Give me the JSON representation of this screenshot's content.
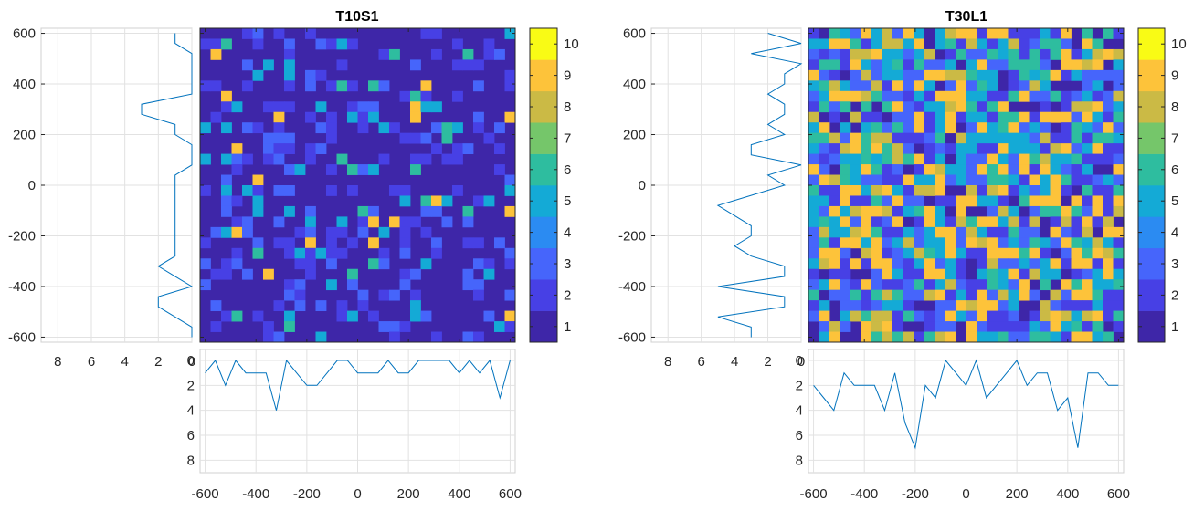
{
  "chart_data": [
    {
      "id": "left",
      "type": "heatmap",
      "title": "T10S1",
      "xlim": [
        -620,
        620
      ],
      "ylim": [
        -620,
        620
      ],
      "xticks": [
        -600,
        -400,
        -200,
        0,
        200,
        400,
        600
      ],
      "yticks": [
        -600,
        -400,
        -200,
        0,
        200,
        400,
        600
      ],
      "grid": "30x30",
      "colorbar": {
        "ticks": [
          1,
          2,
          3,
          4,
          5,
          6,
          7,
          8,
          9,
          10
        ],
        "range": [
          0.5,
          10.5
        ]
      },
      "noise": {
        "seed": 11,
        "p1": 0.68,
        "p2": 0.83,
        "p3": 0.91,
        "p4": 0.96,
        "p5": 0.985
      },
      "row_profile": {
        "xlim": [
          0,
          9
        ],
        "xticks": [
          8,
          6,
          4,
          2,
          0
        ],
        "y": [
          600,
          560,
          520,
          480,
          440,
          400,
          360,
          320,
          280,
          240,
          200,
          160,
          120,
          80,
          40,
          0,
          -40,
          -80,
          -120,
          -160,
          -200,
          -240,
          -280,
          -320,
          -360,
          -400,
          -440,
          -480,
          -520,
          -560,
          -600
        ],
        "x": [
          1,
          1,
          0,
          0,
          0,
          0,
          0,
          3,
          3,
          1,
          1,
          0,
          0,
          0,
          1,
          1,
          1,
          1,
          1,
          1,
          1,
          1,
          1,
          2,
          1,
          0,
          2,
          2,
          1,
          0,
          0
        ]
      },
      "col_profile": {
        "ylim": [
          0,
          9
        ],
        "yticks": [
          0,
          2,
          4,
          6,
          8
        ],
        "x": [
          -600,
          -560,
          -520,
          -480,
          -440,
          -400,
          -360,
          -320,
          -280,
          -240,
          -200,
          -160,
          -120,
          -80,
          -40,
          0,
          40,
          80,
          120,
          160,
          200,
          240,
          280,
          320,
          360,
          400,
          440,
          480,
          520,
          560,
          600
        ],
        "y": [
          1,
          0,
          2,
          0,
          1,
          1,
          1,
          4,
          0,
          1,
          2,
          2,
          1,
          0,
          0,
          1,
          1,
          1,
          0,
          1,
          1,
          0,
          0,
          0,
          0,
          1,
          0,
          1,
          0,
          3,
          0
        ]
      }
    },
    {
      "id": "right",
      "type": "heatmap",
      "title": "T30L1",
      "xlim": [
        -620,
        620
      ],
      "ylim": [
        -620,
        620
      ],
      "xticks": [
        -600,
        -400,
        -200,
        0,
        200,
        400,
        600
      ],
      "yticks": [
        -600,
        -400,
        -200,
        0,
        200,
        400,
        600
      ],
      "grid": "30x30",
      "colorbar": {
        "ticks": [
          1,
          2,
          3,
          4,
          5,
          6,
          7,
          8,
          9,
          10
        ],
        "range": [
          0.5,
          10.5
        ]
      },
      "noise": {
        "seed": 47,
        "p1": 0.12,
        "p2": 0.32,
        "p3": 0.52,
        "p4": 0.7,
        "p5": 0.87
      },
      "row_profile": {
        "xlim": [
          0,
          9
        ],
        "xticks": [
          8,
          6,
          4,
          2,
          0
        ],
        "y": [
          600,
          560,
          520,
          480,
          440,
          400,
          360,
          320,
          280,
          240,
          200,
          160,
          120,
          80,
          40,
          0,
          -40,
          -80,
          -120,
          -160,
          -200,
          -240,
          -280,
          -320,
          -360,
          -400,
          -440,
          -480,
          -520,
          -560,
          -600
        ],
        "x": [
          2,
          0,
          3,
          0,
          1,
          1,
          2,
          1,
          1,
          2,
          1,
          3,
          3,
          0,
          2,
          1,
          3,
          5,
          4,
          3,
          3,
          4,
          3,
          1,
          1,
          5,
          1,
          1,
          5,
          3,
          3
        ]
      },
      "col_profile": {
        "ylim": [
          0,
          9
        ],
        "yticks": [
          0,
          2,
          4,
          6,
          8
        ],
        "x": [
          -600,
          -560,
          -520,
          -480,
          -440,
          -400,
          -360,
          -320,
          -280,
          -240,
          -200,
          -160,
          -120,
          -80,
          -40,
          0,
          40,
          80,
          120,
          160,
          200,
          240,
          280,
          320,
          360,
          400,
          440,
          480,
          520,
          560,
          600
        ],
        "y": [
          2,
          3,
          4,
          1,
          2,
          2,
          2,
          4,
          1,
          5,
          7,
          2,
          3,
          0,
          1,
          2,
          0,
          3,
          2,
          1,
          0,
          2,
          1,
          1,
          4,
          3,
          7,
          1,
          1,
          2,
          2
        ]
      }
    }
  ],
  "colormap": [
    "#3e26a8",
    "#4740e5",
    "#4665fb",
    "#2b8bf2",
    "#14aad6",
    "#2ebd9f",
    "#75c66a",
    "#cbba45",
    "#fdc33a",
    "#f9fb15"
  ]
}
